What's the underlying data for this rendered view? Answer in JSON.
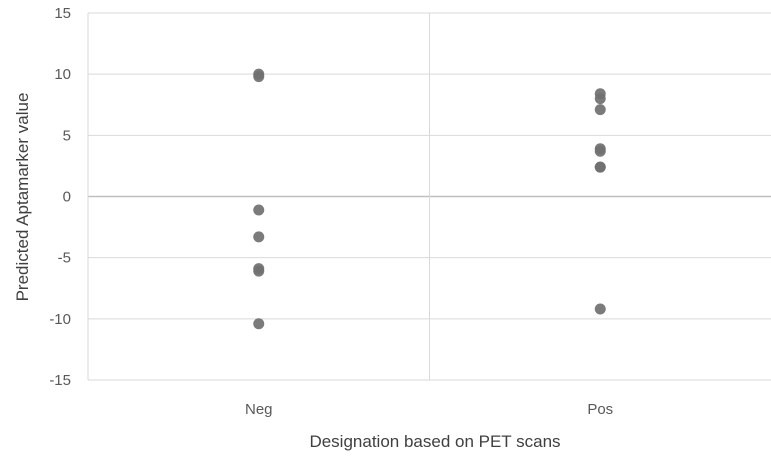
{
  "chart_data": {
    "type": "scatter",
    "title": "",
    "xlabel": "Designation based on PET scans",
    "ylabel": "Predicted Aptamarker value",
    "categories": [
      "Neg",
      "Pos"
    ],
    "ylim": [
      -15,
      15
    ],
    "yticks": [
      15,
      10,
      5,
      0,
      -5,
      -10,
      -15
    ],
    "ytick_labels": [
      "15",
      "10",
      "5",
      "0",
      "-5",
      "-10",
      "-15"
    ],
    "grid": true,
    "legend": "none",
    "series": [
      {
        "category": "Neg",
        "values": [
          10.0,
          9.8,
          -1.1,
          -3.3,
          -5.9,
          -6.1,
          -10.4
        ]
      },
      {
        "category": "Pos",
        "values": [
          8.4,
          8.0,
          7.1,
          3.9,
          3.7,
          2.4,
          2.4,
          -9.2
        ]
      }
    ],
    "colors": {
      "marker": "#707070",
      "grid": "#d9d9d9",
      "zero_line": "#bfbfbf",
      "text": "#595959"
    }
  }
}
